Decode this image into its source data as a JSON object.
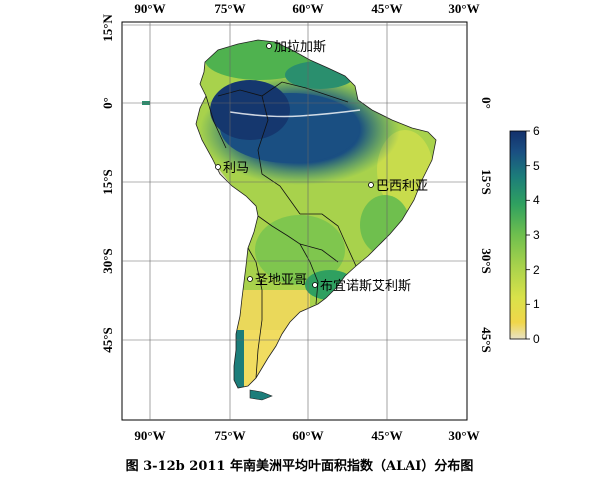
{
  "map": {
    "lon_labels": [
      "90°W",
      "75°W",
      "60°W",
      "45°W",
      "30°W"
    ],
    "lat_labels": [
      "15°N",
      "0°",
      "15°S",
      "30°S",
      "45°S"
    ],
    "cities": [
      {
        "name": "加拉加斯"
      },
      {
        "name": "利马"
      },
      {
        "name": "巴西利亚"
      },
      {
        "name": "圣地亚哥"
      },
      {
        "name": "布宜诺斯艾利斯"
      }
    ]
  },
  "colorbar": {
    "ticks": [
      "0",
      "1",
      "2",
      "3",
      "4",
      "5",
      "6"
    ],
    "colors": [
      "#e8e2c6",
      "#f0d64a",
      "#d9e24a",
      "#a8d24c",
      "#6fbf4e",
      "#2fa060",
      "#1c7d7a",
      "#1a4f82",
      "#13306b"
    ]
  },
  "caption": "图 3-12b 2011 年南美洲平均叶面积指数（ALAI）分布图"
}
